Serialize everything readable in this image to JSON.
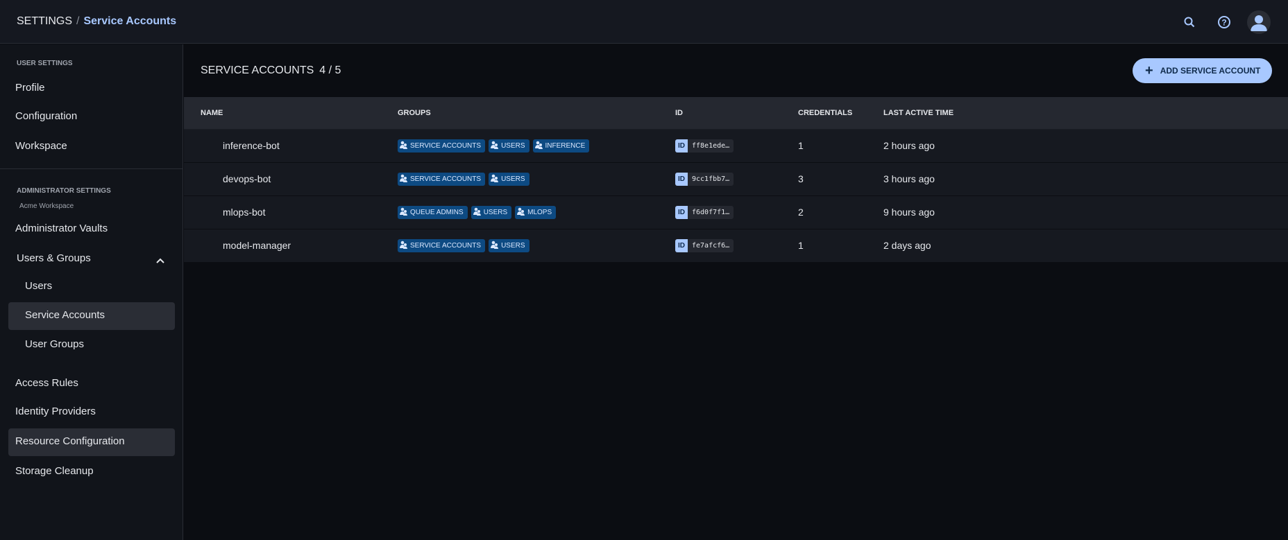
{
  "header": {
    "breadcrumb_root": "SETTINGS",
    "breadcrumb_sep": "/",
    "breadcrumb_current": "Service Accounts",
    "icons": [
      "search-icon",
      "help-icon",
      "avatar-icon"
    ]
  },
  "sidebar": {
    "user_settings_label": "USER SETTINGS",
    "profile": "Profile",
    "configuration": "Configuration",
    "workspace": "Workspace",
    "admin_settings_label": "ADMINISTRATOR SETTINGS",
    "workspace_name": "Acme Workspace",
    "admin_vaults": "Administrator Vaults",
    "users_groups": "Users & Groups",
    "users": "Users",
    "service_accounts": "Service Accounts",
    "user_groups": "User Groups",
    "access_rules": "Access Rules",
    "identity_providers": "Identity Providers",
    "resource_configuration": "Resource Configuration",
    "storage_cleanup": "Storage Cleanup"
  },
  "main": {
    "title": "SERVICE ACCOUNTS",
    "count": "4 / 5",
    "add_button": "ADD SERVICE ACCOUNT",
    "columns": {
      "name": "NAME",
      "groups": "GROUPS",
      "id": "ID",
      "credentials": "CREDENTIALS",
      "last_active": "LAST ACTIVE TIME"
    },
    "id_label": "ID",
    "rows": [
      {
        "name": "inference-bot",
        "groups": [
          "SERVICE ACCOUNTS",
          "USERS",
          "INFERENCE"
        ],
        "id": "ff8e1ede…",
        "credentials": "1",
        "last_active": "2 hours ago"
      },
      {
        "name": "devops-bot",
        "groups": [
          "SERVICE ACCOUNTS",
          "USERS"
        ],
        "id": "9cc1fbb7…",
        "credentials": "3",
        "last_active": "3 hours ago"
      },
      {
        "name": "mlops-bot",
        "groups": [
          "QUEUE ADMINS",
          "USERS",
          "MLOPS"
        ],
        "id": "f6d0f7f1…",
        "credentials": "2",
        "last_active": "9 hours ago"
      },
      {
        "name": "model-manager",
        "groups": [
          "SERVICE ACCOUNTS",
          "USERS"
        ],
        "id": "fe7afcf6…",
        "credentials": "1",
        "last_active": "2 days ago"
      }
    ]
  },
  "colors": {
    "accent": "#a8c8ff",
    "tag_bg": "#0d4a82",
    "bg": "#0b0d12"
  }
}
